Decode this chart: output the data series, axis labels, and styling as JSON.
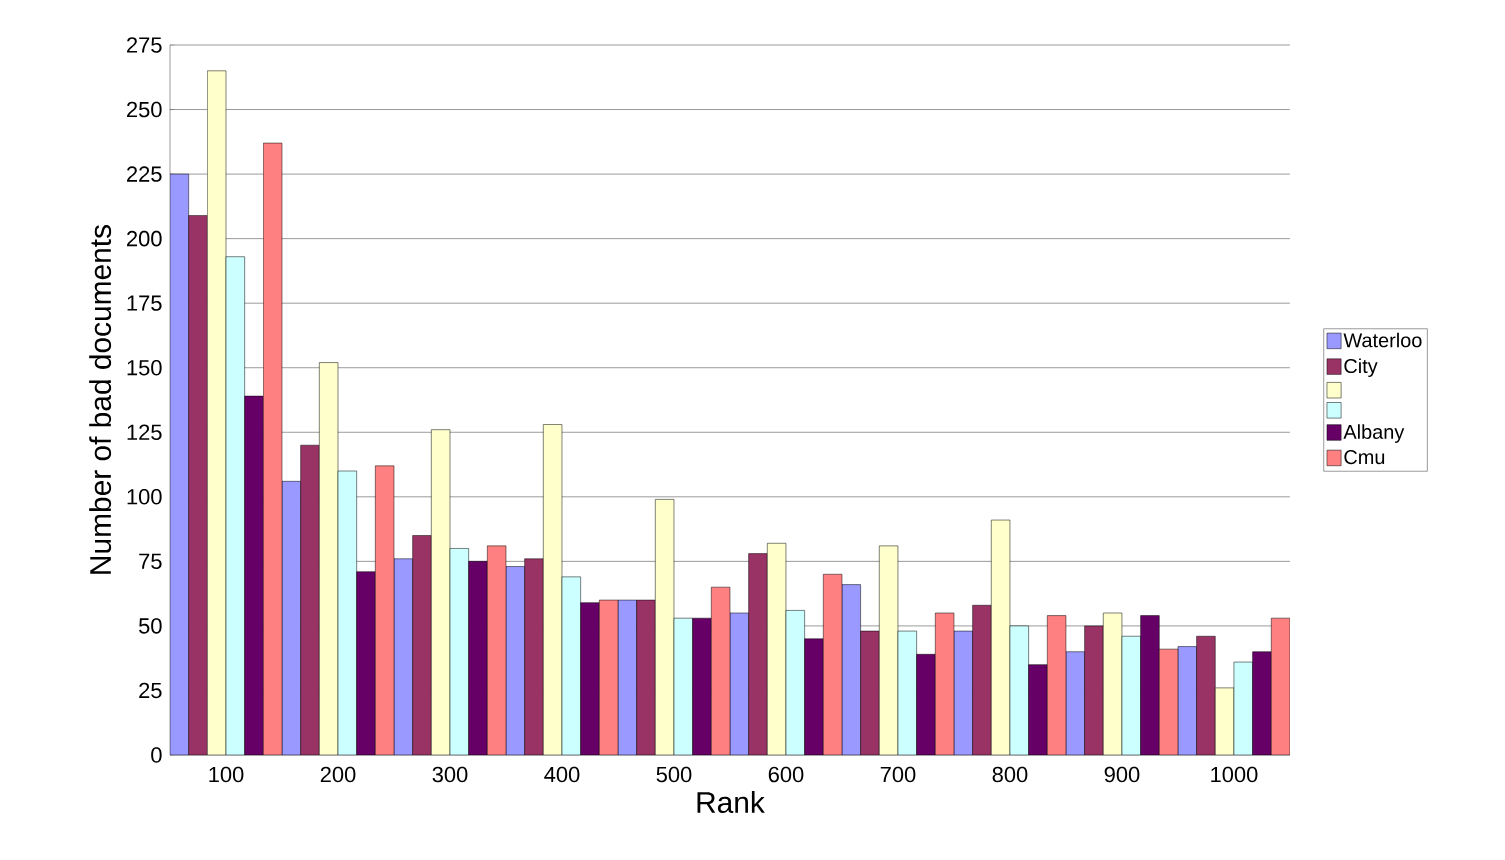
{
  "chart_data": {
    "type": "bar",
    "xlabel": "Rank",
    "ylabel": "Number of bad documents",
    "categories": [
      "100",
      "200",
      "300",
      "400",
      "500",
      "600",
      "700",
      "800",
      "900",
      "1000"
    ],
    "series": [
      {
        "name": "Waterloo",
        "color": "#9999ff",
        "values": [
          225,
          106,
          76,
          73,
          60,
          55,
          66,
          48,
          40,
          42
        ]
      },
      {
        "name": "City",
        "color": "#993366",
        "values": [
          209,
          120,
          85,
          76,
          60,
          78,
          48,
          58,
          50,
          46
        ]
      },
      {
        "color": "#ffffcc",
        "values": [
          265,
          152,
          126,
          128,
          99,
          82,
          81,
          91,
          55,
          26
        ]
      },
      {
        "color": "#ccffff",
        "values": [
          193,
          110,
          80,
          69,
          53,
          56,
          48,
          50,
          46,
          36
        ]
      },
      {
        "name": "Albany",
        "color": "#660066",
        "values": [
          139,
          71,
          75,
          59,
          53,
          45,
          39,
          35,
          54,
          40
        ]
      },
      {
        "name": "Cmu",
        "color": "#ff8080",
        "values": [
          237,
          112,
          81,
          60,
          65,
          70,
          55,
          54,
          41,
          53
        ]
      }
    ],
    "ylim": [
      0,
      275
    ],
    "yticks": [
      0,
      25,
      50,
      75,
      100,
      125,
      150,
      175,
      200,
      225,
      250,
      275
    ],
    "grid": "y",
    "legend": "right"
  }
}
